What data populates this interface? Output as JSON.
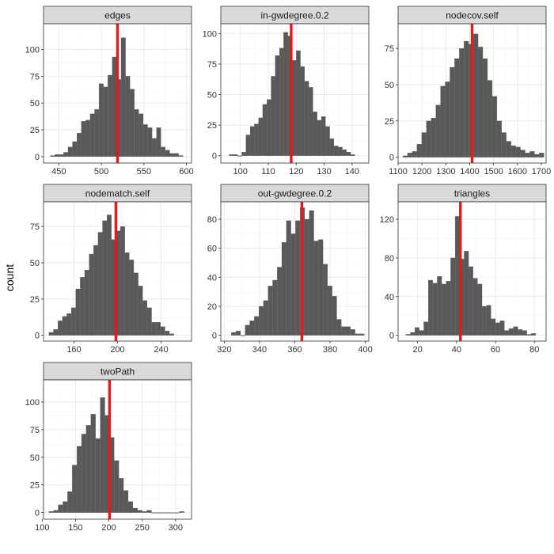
{
  "ylabel": "count",
  "colors": {
    "bar": "#595959",
    "bar_edge": "#6e6e6e",
    "ref": "#e41a1c",
    "strip": "#d9d9d9",
    "grid_major": "#ebebeb",
    "grid_minor": "#f5f5f5",
    "border": "#333333",
    "text": "#333333"
  },
  "chart_data": [
    {
      "type": "bar",
      "title": "edges",
      "xlabel": "",
      "ylabel": "count",
      "xlim": [
        432,
        606
      ],
      "ylim": [
        -6,
        124
      ],
      "xticks": [
        450,
        500,
        550,
        600
      ],
      "yticks": [
        0,
        25,
        50,
        75,
        100
      ],
      "bin_start": 440,
      "bin_width": 5.2,
      "counts": [
        1,
        2,
        2,
        4,
        9,
        14,
        22,
        33,
        34,
        40,
        44,
        68,
        65,
        76,
        93,
        72,
        111,
        75,
        63,
        44,
        40,
        30,
        27,
        17,
        27,
        9,
        6,
        3,
        3,
        1
      ],
      "ref_line": 519
    },
    {
      "type": "bar",
      "title": "in-gwdegree.0.2",
      "xlabel": "",
      "ylabel": "count",
      "xlim": [
        93,
        146
      ],
      "ylim": [
        -6,
        108
      ],
      "xticks": [
        100,
        110,
        120,
        130,
        140
      ],
      "yticks": [
        0,
        25,
        50,
        75,
        100
      ],
      "bin_start": 96,
      "bin_width": 1.5,
      "counts": [
        1,
        1,
        0,
        3,
        17,
        24,
        26,
        31,
        42,
        46,
        65,
        82,
        88,
        101,
        98,
        78,
        86,
        73,
        61,
        56,
        36,
        29,
        32,
        24,
        14,
        8,
        7,
        5,
        3,
        1
      ],
      "ref_line": 118.2
    },
    {
      "type": "bar",
      "title": "nodecov.self",
      "xlabel": "",
      "ylabel": "count",
      "xlim": [
        1100,
        1720
      ],
      "ylim": [
        -4,
        92
      ],
      "xticks": [
        1100,
        1200,
        1300,
        1400,
        1500,
        1600,
        1700
      ],
      "yticks": [
        0,
        25,
        50,
        75
      ],
      "bin_start": 1120,
      "bin_width": 19.7,
      "counts": [
        1,
        3,
        4,
        9,
        17,
        25,
        27,
        36,
        49,
        52,
        62,
        68,
        75,
        80,
        78,
        85,
        76,
        68,
        53,
        42,
        25,
        17,
        11,
        8,
        7,
        5,
        3,
        4,
        2,
        3
      ],
      "ref_line": 1410
    },
    {
      "type": "bar",
      "title": "nodematch.self",
      "xlabel": "",
      "ylabel": "count",
      "xlim": [
        132,
        268
      ],
      "ylim": [
        -4,
        92
      ],
      "xticks": [
        160,
        200,
        240
      ],
      "yticks": [
        0,
        25,
        50,
        75
      ],
      "bin_start": 137,
      "bin_width": 4.1,
      "counts": [
        2,
        4,
        10,
        13,
        15,
        19,
        32,
        40,
        45,
        56,
        62,
        71,
        79,
        83,
        66,
        72,
        75,
        57,
        52,
        43,
        34,
        24,
        19,
        9,
        9,
        6,
        3,
        1
      ],
      "ref_line": 198.5
    },
    {
      "type": "bar",
      "title": "out-gwdegree.0.2",
      "xlabel": "",
      "ylabel": "count",
      "xlim": [
        318,
        402
      ],
      "ylim": [
        -4,
        92
      ],
      "xticks": [
        320,
        340,
        360,
        380,
        400
      ],
      "yticks": [
        0,
        20,
        40,
        60,
        80
      ],
      "bin_start": 324,
      "bin_width": 2.6,
      "counts": [
        2,
        3,
        0,
        7,
        10,
        13,
        20,
        24,
        34,
        38,
        47,
        64,
        79,
        70,
        79,
        88,
        80,
        86,
        65,
        66,
        49,
        34,
        27,
        11,
        6,
        6,
        4,
        1,
        1
      ],
      "ref_line": 364
    },
    {
      "type": "bar",
      "title": "triangles",
      "xlabel": "",
      "ylabel": "count",
      "xlim": [
        10,
        86
      ],
      "ylim": [
        -6,
        138
      ],
      "xticks": [
        20,
        40,
        60,
        80
      ],
      "yticks": [
        0,
        40,
        80,
        120
      ],
      "bin_start": 14,
      "bin_width": 2.3,
      "counts": [
        1,
        3,
        8,
        5,
        14,
        57,
        54,
        61,
        53,
        56,
        80,
        123,
        79,
        87,
        71,
        59,
        53,
        30,
        31,
        17,
        13,
        15,
        5,
        7,
        9,
        6,
        5,
        1,
        2
      ],
      "ref_line": 42
    },
    {
      "type": "bar",
      "title": "twoPath",
      "xlabel": "",
      "ylabel": "count",
      "xlim": [
        102,
        324
      ],
      "ylim": [
        -6,
        120
      ],
      "xticks": [
        100,
        150,
        200,
        250,
        300
      ],
      "yticks": [
        0,
        25,
        50,
        75,
        100
      ],
      "bin_start": 110,
      "bin_width": 7,
      "counts": [
        1,
        2,
        7,
        10,
        19,
        43,
        60,
        71,
        79,
        89,
        67,
        104,
        88,
        68,
        47,
        31,
        20,
        10,
        4,
        2,
        1,
        2,
        0,
        0,
        0,
        0,
        0,
        0,
        1
      ],
      "ref_line": 201
    }
  ]
}
